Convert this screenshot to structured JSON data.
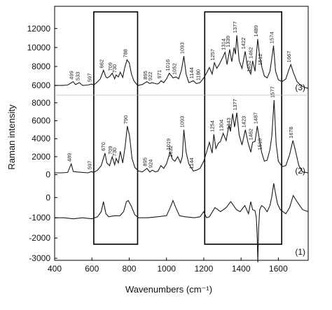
{
  "chart_data": {
    "type": "line",
    "xlabel": "Wavenumbers (cm⁻¹)",
    "ylabel": "Raman intensity",
    "xlim": [
      400,
      1760
    ],
    "x_ticks": [
      400,
      600,
      800,
      1000,
      1200,
      1400,
      1600
    ],
    "grid": false,
    "legend": "none",
    "highlight_boxes_x": [
      [
        610,
        845
      ],
      [
        1205,
        1618
      ]
    ],
    "panels": [
      {
        "trace_label": "(3)",
        "ylim": [
          5200,
          13900
        ],
        "y_ticks": [
          6000,
          8000,
          10000,
          12000
        ],
        "series": [
          {
            "x": [
              400,
              440,
              470,
              499,
              512,
              533,
              550,
              580,
              597,
              610,
              625,
              645,
              662,
              675,
              682,
              695,
              709,
              722,
              730,
              742,
              752,
              765,
              775,
              788,
              800,
              812,
              825,
              845,
              870,
              895,
              910,
              922,
              940,
              950,
              960,
              971,
              985,
              1000,
              1015,
              1035,
              1052,
              1065,
              1080,
              1093,
              1105,
              1120,
              1144,
              1160,
              1180,
              1200,
              1215,
              1230,
              1245,
              1257,
              1270,
              1285,
              1300,
              1314,
              1325,
              1339,
              1350,
              1363,
              1370,
              1377,
              1390,
              1405,
              1422,
              1435,
              1452,
              1462,
              1475,
              1489,
              1500,
              1512,
              1525,
              1540,
              1555,
              1563,
              1574,
              1585,
              1600,
              1620,
              1640,
              1655,
              1667,
              1680,
              1700,
              1720,
              1740,
              1760
            ],
            "y": [
              6000,
              6000,
              6050,
              6400,
              6100,
              6300,
              6000,
              6050,
              6150,
              6050,
              6300,
              6700,
              7600,
              6900,
              6800,
              6950,
              7300,
              6700,
              7100,
              6900,
              7400,
              6850,
              7800,
              8700,
              8400,
              7200,
              6500,
              6000,
              6100,
              6400,
              6200,
              6300,
              6200,
              6150,
              6250,
              6500,
              6300,
              6700,
              7300,
              6800,
              6900,
              6700,
              7600,
              9100,
              7200,
              6300,
              6500,
              6200,
              6300,
              6800,
              7300,
              7900,
              7200,
              8400,
              7800,
              8300,
              8900,
              9500,
              8200,
              9800,
              8500,
              10000,
              9300,
              11300,
              8600,
              7800,
              9600,
              7900,
              7200,
              8600,
              7500,
              10900,
              9000,
              7900,
              7000,
              6800,
              7500,
              8600,
              10200,
              7500,
              6600,
              6400,
              6700,
              7600,
              8200,
              7400,
              6400,
              6000,
              5800,
              5700
            ]
          }
        ],
        "annotations": [
          "499",
          "533",
          "597",
          "662",
          "709",
          "730",
          "788",
          "895",
          "922",
          "971",
          "1016",
          "1052",
          "1093",
          "1144",
          "1180",
          "1257",
          "1314",
          "1339",
          "1377",
          "1422",
          "1452",
          "1462",
          "1489",
          "1512",
          "1574",
          "1667"
        ]
      },
      {
        "trace_label": "(2)",
        "ylim": [
          -500,
          9000
        ],
        "y_ticks": [
          0,
          2000,
          4000,
          6000,
          8000
        ],
        "series": [
          {
            "x": [
              400,
              440,
              470,
              489,
              500,
              520,
              550,
              580,
              597,
              610,
              630,
              650,
              670,
              680,
              695,
              709,
              722,
              730,
              742,
              752,
              765,
              778,
              790,
              802,
              815,
              830,
              850,
              870,
              895,
              910,
              924,
              940,
              955,
              970,
              985,
              1000,
              1019,
              1032,
              1045,
              1060,
              1075,
              1085,
              1093,
              1105,
              1120,
              1135,
              1144,
              1160,
              1180,
              1200,
              1215,
              1230,
              1245,
              1254,
              1265,
              1278,
              1290,
              1304,
              1320,
              1335,
              1343,
              1355,
              1365,
              1377,
              1390,
              1405,
              1423,
              1437,
              1452,
              1462,
              1475,
              1487,
              1500,
              1510,
              1525,
              1540,
              1555,
              1565,
              1577,
              1588,
              1600,
              1620,
              1640,
              1660,
              1678,
              1690,
              1710,
              1730,
              1760
            ],
            "y": [
              200,
              200,
              250,
              1200,
              350,
              300,
              250,
              200,
              350,
              250,
              500,
              1000,
              2400,
              1300,
              1000,
              2000,
              1100,
              1800,
              1300,
              2600,
              1300,
              3100,
              5400,
              4300,
              1800,
              800,
              400,
              300,
              700,
              300,
              500,
              300,
              400,
              1000,
              700,
              1200,
              2500,
              1700,
              1500,
              2000,
              1300,
              2000,
              5000,
              2500,
              1200,
              700,
              400,
              500,
              700,
              1500,
              2500,
              3600,
              2400,
              4500,
              2900,
              3500,
              3700,
              4600,
              3800,
              5500,
              4800,
              6800,
              5300,
              6900,
              4400,
              3300,
              5000,
              3600,
              2500,
              3600,
              3700,
              5400,
              3700,
              2500,
              1500,
              1600,
              2800,
              4300,
              8300,
              3500,
              1500,
              900,
              1000,
              2200,
              3800,
              2800,
              1000,
              300,
              200
            ]
          }
        ],
        "annotations": [
          "489",
          "597",
          "670",
          "709",
          "730",
          "790",
          "895",
          "924",
          "1019",
          "1032",
          "1093",
          "1144",
          "1254",
          "1304",
          "1343",
          "1377",
          "1423",
          "1462",
          "1487",
          "1510",
          "1577",
          "1678"
        ]
      },
      {
        "trace_label": "(1)",
        "ylim": [
          -3100,
          700
        ],
        "y_ticks": [
          -3000,
          -2000,
          -1000,
          0
        ],
        "series": [
          {
            "x": [
              400,
              450,
              500,
              550,
              600,
              630,
              650,
              662,
              675,
              690,
              720,
              750,
              770,
              785,
              795,
              810,
              830,
              850,
              900,
              950,
              1000,
              1020,
              1035,
              1050,
              1070,
              1100,
              1150,
              1180,
              1200,
              1215,
              1230,
              1260,
              1290,
              1320,
              1345,
              1360,
              1375,
              1395,
              1420,
              1440,
              1452,
              1462,
              1475,
              1482,
              1487,
              1490,
              1494,
              1500,
              1510,
              1525,
              1540,
              1555,
              1565,
              1575,
              1585,
              1595,
              1610,
              1640,
              1660,
              1680,
              1700,
              1730,
              1760
            ],
            "y": [
              -1000,
              -1000,
              -1050,
              -1000,
              -1050,
              -950,
              -700,
              -200,
              -800,
              -950,
              -900,
              -900,
              -700,
              -200,
              -150,
              -400,
              -850,
              -1000,
              -1000,
              -950,
              -900,
              -500,
              -150,
              -500,
              -900,
              -950,
              -1000,
              -950,
              -700,
              -1000,
              -950,
              -500,
              -700,
              -500,
              -200,
              -400,
              -600,
              -700,
              -400,
              -800,
              -200,
              -600,
              -650,
              -1000,
              -2000,
              -3200,
              -1500,
              -600,
              -400,
              -500,
              -700,
              -400,
              50,
              700,
              200,
              -300,
              -600,
              -800,
              -500,
              100,
              -200,
              -600,
              -700
            ]
          }
        ],
        "annotations": []
      }
    ]
  }
}
